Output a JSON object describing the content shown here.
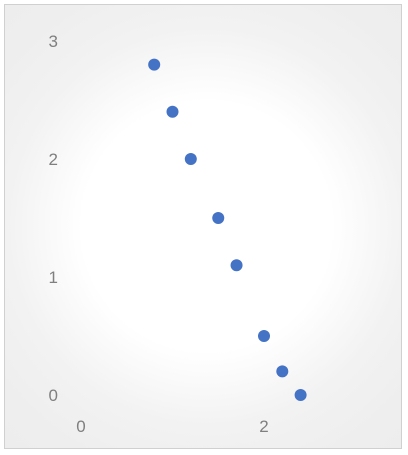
{
  "chart_data": {
    "type": "scatter",
    "title": "",
    "xlabel": "",
    "ylabel": "",
    "xlim": [
      0,
      4
    ],
    "ylim": [
      0,
      3
    ],
    "x_ticks": [
      "0",
      "2"
    ],
    "y_ticks": [
      "0",
      "1",
      "2",
      "3"
    ],
    "grid": false,
    "legend": "none",
    "series": [
      {
        "color": "#4472C4",
        "points": [
          {
            "x": 0.8,
            "y": 2.8
          },
          {
            "x": 1.0,
            "y": 2.4
          },
          {
            "x": 1.2,
            "y": 2.0
          },
          {
            "x": 1.5,
            "y": 1.5
          },
          {
            "x": 1.7,
            "y": 1.1
          },
          {
            "x": 2.0,
            "y": 0.5
          },
          {
            "x": 2.2,
            "y": 0.2
          },
          {
            "x": 2.4,
            "y": 0.0
          }
        ]
      }
    ]
  }
}
